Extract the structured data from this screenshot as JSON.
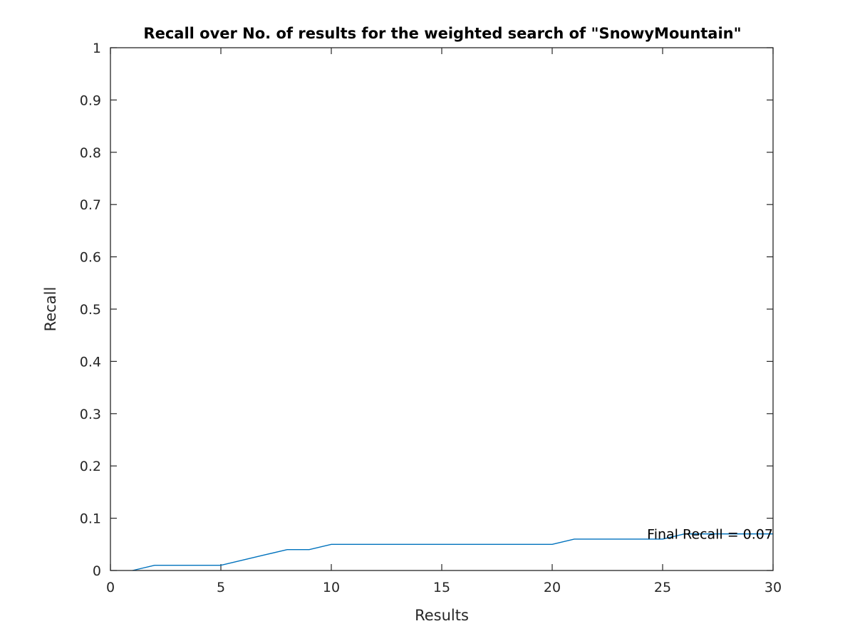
{
  "chart_data": {
    "type": "line",
    "title": "Recall over No. of results for the weighted search of \"SnowyMountain\"",
    "xlabel": "Results",
    "ylabel": "Recall",
    "xlim": [
      0,
      30
    ],
    "ylim": [
      0,
      1
    ],
    "xticks": [
      0,
      5,
      10,
      15,
      20,
      25,
      30
    ],
    "xtick_labels": [
      "0",
      "5",
      "10",
      "15",
      "20",
      "25",
      "30"
    ],
    "yticks": [
      0,
      0.1,
      0.2,
      0.3,
      0.4,
      0.5,
      0.6,
      0.7,
      0.8,
      0.9,
      1
    ],
    "ytick_labels": [
      "0",
      "0.1",
      "0.2",
      "0.3",
      "0.4",
      "0.5",
      "0.6",
      "0.7",
      "0.8",
      "0.9",
      "1"
    ],
    "grid": false,
    "line_color": "#0072BD",
    "series": [
      {
        "x": [
          1,
          2,
          3,
          4,
          5,
          6,
          7,
          8,
          9,
          10,
          11,
          12,
          13,
          14,
          15,
          16,
          17,
          18,
          19,
          20,
          21,
          22,
          23,
          24,
          25,
          26,
          27,
          28,
          29,
          30
        ],
        "values": [
          0,
          0.01,
          0.01,
          0.01,
          0.01,
          0.02,
          0.03,
          0.04,
          0.04,
          0.05,
          0.05,
          0.05,
          0.05,
          0.05,
          0.05,
          0.05,
          0.05,
          0.05,
          0.05,
          0.05,
          0.06,
          0.06,
          0.06,
          0.06,
          0.06,
          0.07,
          0.07,
          0.07,
          0.07,
          0.07
        ]
      }
    ],
    "annotations": [
      {
        "text": "Final Recall = 0.07",
        "x": 30,
        "y": 0.07
      }
    ]
  }
}
